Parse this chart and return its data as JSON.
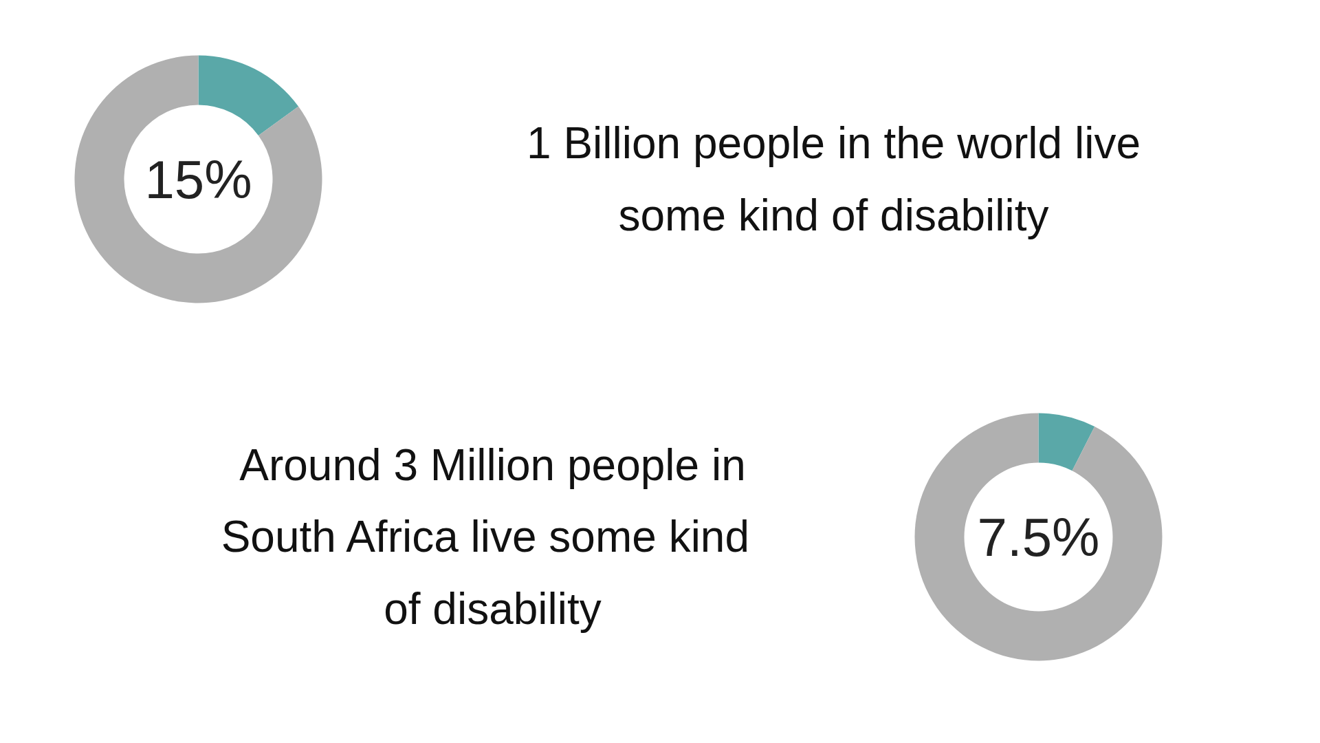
{
  "chart_data": [
    {
      "type": "donut",
      "categories": [
        null,
        null
      ],
      "values": [
        15,
        85
      ],
      "colors": [
        "#5aa8a8",
        "#b0b0b0"
      ],
      "annotations": [
        "15%",
        "1 Billion people in the world live\nsome kind of disability"
      ]
    },
    {
      "type": "donut",
      "categories": [
        null,
        null
      ],
      "values": [
        7.5,
        92.5
      ],
      "colors": [
        "#5aa8a8",
        "#b0b0b0"
      ],
      "annotations": [
        "7.5%",
        "Around 3 Million people in\nSouth Africa  live some kind\nof disability"
      ]
    }
  ]
}
